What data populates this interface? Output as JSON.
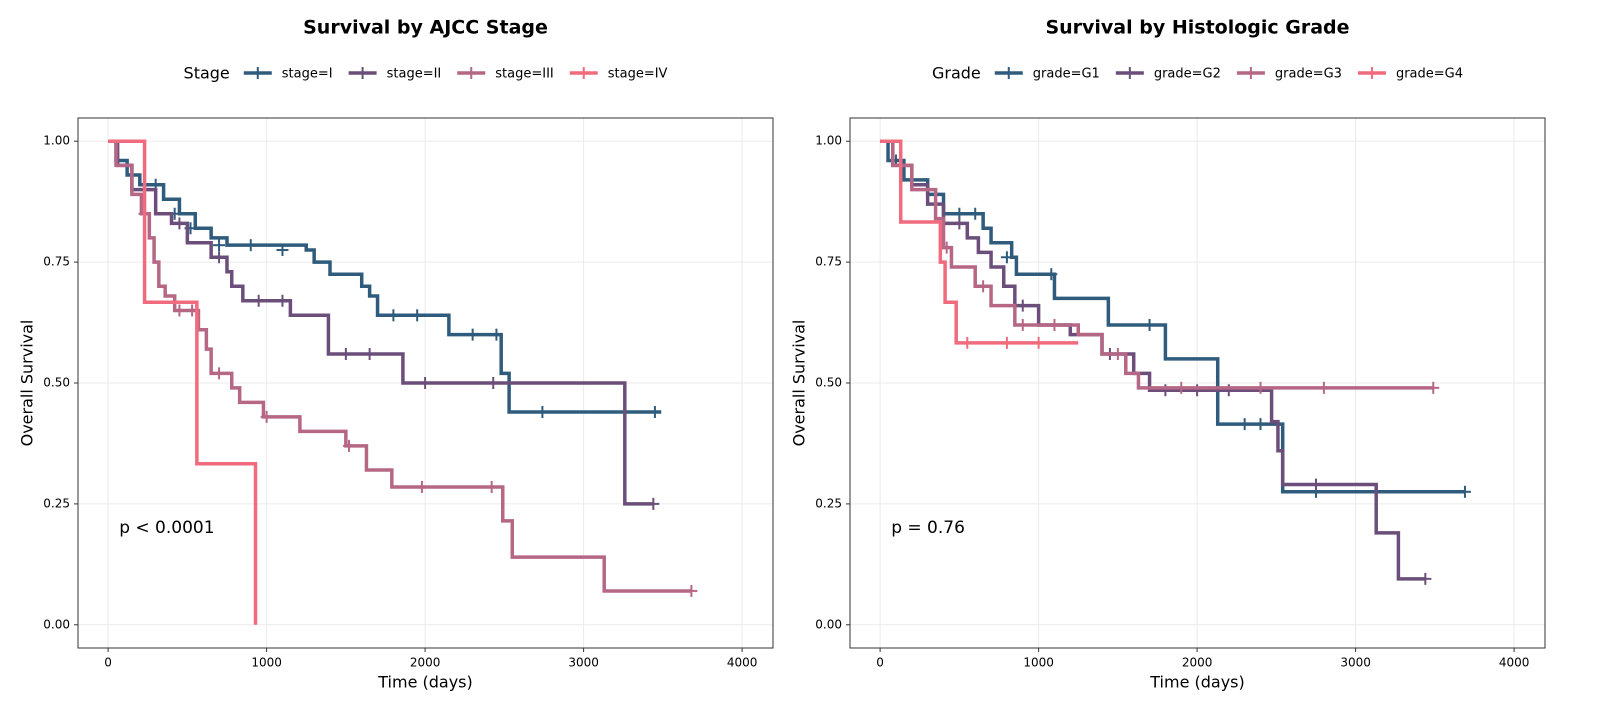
{
  "chart_data": [
    {
      "type": "line",
      "title": "Survival by AJCC Stage",
      "legend_title": "Stage",
      "x_label": "Time (days)",
      "y_label": "Overall Survival",
      "annotation": "p < 0.0001",
      "xlim": [
        -190,
        4195
      ],
      "ylim": [
        -0.048,
        1.048
      ],
      "xticks": [
        0,
        1000,
        2000,
        3000,
        4000
      ],
      "yticks": [
        {
          "value": 0,
          "label": "0.00"
        },
        {
          "value": 0.25,
          "label": "0.25"
        },
        {
          "value": 0.5,
          "label": "0.50"
        },
        {
          "value": 0.75,
          "label": "0.75"
        },
        {
          "value": 1,
          "label": "1.00"
        }
      ],
      "grid": true,
      "step": true,
      "series": [
        {
          "name": "stage=I",
          "color": "#2f5b7c",
          "x": [
            0,
            50,
            120,
            200,
            350,
            450,
            550,
            650,
            750,
            1250,
            1300,
            1400,
            1600,
            1650,
            1700,
            2150,
            2480,
            2530,
            3490
          ],
          "values": [
            1,
            0.96,
            0.93,
            0.91,
            0.88,
            0.85,
            0.82,
            0.8,
            0.785,
            0.775,
            0.75,
            0.725,
            0.7,
            0.68,
            0.64,
            0.6,
            0.52,
            0.44,
            0.44
          ],
          "censor_x": [
            300,
            420,
            520,
            700,
            900,
            1100,
            1800,
            1950,
            2300,
            2450,
            2740,
            3450
          ],
          "censor_values": [
            0.91,
            0.85,
            0.82,
            0.785,
            0.785,
            0.775,
            0.64,
            0.64,
            0.6,
            0.6,
            0.44,
            0.44
          ]
        },
        {
          "name": "stage=II",
          "color": "#6b4f7a",
          "x": [
            0,
            60,
            150,
            300,
            400,
            500,
            650,
            750,
            780,
            850,
            1150,
            1390,
            1860,
            3260,
            3440
          ],
          "values": [
            1,
            0.95,
            0.9,
            0.85,
            0.83,
            0.79,
            0.76,
            0.73,
            0.7,
            0.67,
            0.64,
            0.56,
            0.5,
            0.25,
            0.25
          ],
          "censor_x": [
            450,
            700,
            950,
            1100,
            1500,
            1650,
            2000,
            2430,
            3440
          ],
          "censor_values": [
            0.83,
            0.76,
            0.67,
            0.67,
            0.56,
            0.56,
            0.5,
            0.5,
            0.25
          ]
        },
        {
          "name": "stage=III",
          "color": "#b56785",
          "x": [
            0,
            50,
            150,
            210,
            260,
            290,
            320,
            360,
            420,
            570,
            620,
            650,
            780,
            830,
            980,
            1210,
            1500,
            1630,
            1790,
            2490,
            2550,
            3130,
            3680
          ],
          "values": [
            1,
            0.95,
            0.89,
            0.85,
            0.8,
            0.75,
            0.7,
            0.68,
            0.65,
            0.61,
            0.57,
            0.52,
            0.49,
            0.46,
            0.43,
            0.4,
            0.37,
            0.32,
            0.285,
            0.215,
            0.14,
            0.07,
            0.07
          ],
          "censor_x": [
            230,
            450,
            530,
            700,
            1000,
            1520,
            1980,
            2420,
            3680
          ],
          "censor_values": [
            0.85,
            0.65,
            0.65,
            0.52,
            0.43,
            0.37,
            0.285,
            0.285,
            0.07
          ]
        },
        {
          "name": "stage=IV",
          "color": "#f06b7d",
          "x": [
            0,
            230,
            560,
            930
          ],
          "values": [
            1,
            0.667,
            0.333,
            0
          ]
        }
      ]
    },
    {
      "type": "line",
      "title": "Survival by Histologic Grade",
      "legend_title": "Grade",
      "x_label": "Time (days)",
      "y_label": "Overall Survival",
      "annotation": "p = 0.76",
      "xlim": [
        -190,
        4195
      ],
      "ylim": [
        -0.048,
        1.048
      ],
      "xticks": [
        0,
        1000,
        2000,
        3000,
        4000
      ],
      "yticks": [
        {
          "value": 0,
          "label": "0.00"
        },
        {
          "value": 0.25,
          "label": "0.25"
        },
        {
          "value": 0.5,
          "label": "0.50"
        },
        {
          "value": 0.75,
          "label": "0.75"
        },
        {
          "value": 1,
          "label": "1.00"
        }
      ],
      "grid": true,
      "step": true,
      "series": [
        {
          "name": "grade=G1",
          "color": "#2f5b7c",
          "x": [
            0,
            50,
            150,
            300,
            400,
            650,
            700,
            830,
            860,
            1100,
            1440,
            1800,
            2130,
            2540,
            3690
          ],
          "values": [
            1,
            0.96,
            0.92,
            0.89,
            0.85,
            0.82,
            0.79,
            0.76,
            0.725,
            0.675,
            0.62,
            0.55,
            0.415,
            0.275,
            0.275
          ],
          "censor_x": [
            100,
            500,
            600,
            800,
            1080,
            1700,
            2300,
            2400,
            2750,
            3690
          ],
          "censor_values": [
            0.96,
            0.85,
            0.85,
            0.76,
            0.725,
            0.62,
            0.415,
            0.415,
            0.275,
            0.275
          ]
        },
        {
          "name": "grade=G2",
          "color": "#6b4f7a",
          "x": [
            0,
            80,
            200,
            300,
            400,
            550,
            620,
            700,
            780,
            850,
            1000,
            1200,
            1400,
            1600,
            1700,
            2470,
            2510,
            2540,
            3130,
            3270,
            3440
          ],
          "values": [
            1,
            0.95,
            0.91,
            0.87,
            0.83,
            0.8,
            0.77,
            0.74,
            0.7,
            0.66,
            0.62,
            0.6,
            0.56,
            0.52,
            0.485,
            0.42,
            0.36,
            0.29,
            0.19,
            0.095,
            0.095
          ],
          "censor_x": [
            500,
            900,
            1450,
            1800,
            2000,
            2200,
            2750,
            3440
          ],
          "censor_values": [
            0.83,
            0.66,
            0.56,
            0.485,
            0.485,
            0.485,
            0.29,
            0.095
          ]
        },
        {
          "name": "grade=G3",
          "color": "#b56785",
          "x": [
            0,
            80,
            200,
            350,
            400,
            450,
            600,
            700,
            850,
            1250,
            1400,
            1550,
            1630,
            3490
          ],
          "values": [
            1,
            0.95,
            0.9,
            0.84,
            0.78,
            0.74,
            0.7,
            0.66,
            0.62,
            0.6,
            0.56,
            0.52,
            0.49,
            0.49
          ],
          "censor_x": [
            420,
            650,
            900,
            1100,
            1500,
            1900,
            2400,
            2800,
            3490
          ],
          "censor_values": [
            0.78,
            0.7,
            0.62,
            0.62,
            0.56,
            0.49,
            0.49,
            0.49,
            0.49
          ]
        },
        {
          "name": "grade=G4",
          "color": "#f06b7d",
          "x": [
            0,
            130,
            380,
            410,
            480,
            1250
          ],
          "values": [
            1,
            0.833,
            0.75,
            0.667,
            0.583,
            0.583
          ],
          "censor_x": [
            550,
            800,
            1000
          ],
          "censor_values": [
            0.583,
            0.583,
            0.583
          ]
        }
      ]
    }
  ]
}
